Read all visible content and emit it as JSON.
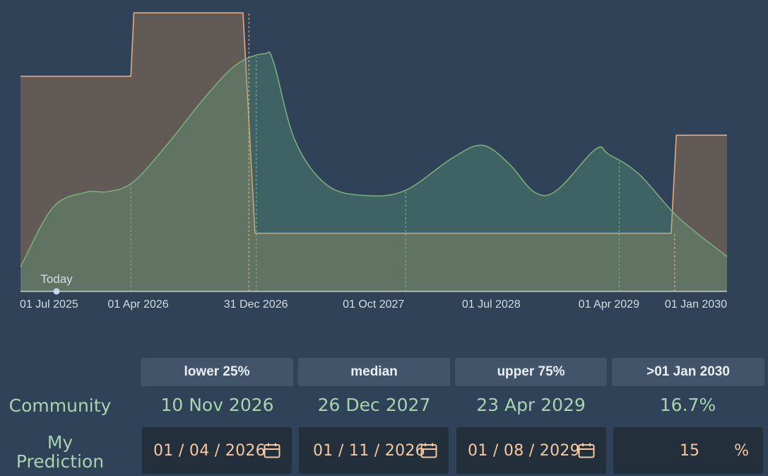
{
  "chart_data": {
    "type": "area",
    "xlim": [
      "2025-07-01",
      "2030-01-01"
    ],
    "x_ticks": [
      "01 Jul 2025",
      "01 Apr 2026",
      "31 Dec 2026",
      "01 Oct 2027",
      "01 Jul 2028",
      "01 Apr 2029",
      "01 Jan 2030"
    ],
    "today_label": "Today",
    "today_date": "2025-07-01",
    "grid": false,
    "series": [
      {
        "color": "#e8a877",
        "fill": "#615a57",
        "curve": "step",
        "points": [
          [
            "2025-07-01",
            0.77
          ],
          [
            "2026-03-15",
            0.77
          ],
          [
            "2026-03-22",
            0.997
          ],
          [
            "2026-12-01",
            0.997
          ],
          [
            "2026-12-29",
            0.208
          ],
          [
            "2029-08-24",
            0.208
          ],
          [
            "2029-09-05",
            0.559
          ],
          [
            "2030-01-01",
            0.559
          ]
        ]
      },
      {
        "color": "#78ad78",
        "fill": "rgba(100,172,126,0.32)",
        "curve": "smooth",
        "points": [
          [
            "2025-07-01",
            0.088
          ],
          [
            "2025-09-15",
            0.301
          ],
          [
            "2025-12-01",
            0.355
          ],
          [
            "2026-01-20",
            0.357
          ],
          [
            "2026-03-20",
            0.391
          ],
          [
            "2026-06-10",
            0.53
          ],
          [
            "2026-09-01",
            0.69
          ],
          [
            "2026-11-15",
            0.811
          ],
          [
            "2027-01-20",
            0.851
          ],
          [
            "2027-02-10",
            0.822
          ],
          [
            "2027-04-01",
            0.541
          ],
          [
            "2027-06-15",
            0.38
          ],
          [
            "2027-09-15",
            0.343
          ],
          [
            "2027-12-15",
            0.362
          ],
          [
            "2028-04-01",
            0.477
          ],
          [
            "2028-06-10",
            0.523
          ],
          [
            "2028-08-10",
            0.459
          ],
          [
            "2028-10-10",
            0.355
          ],
          [
            "2028-12-01",
            0.362
          ],
          [
            "2029-03-01",
            0.509
          ],
          [
            "2029-04-01",
            0.49
          ],
          [
            "2029-06-10",
            0.42
          ],
          [
            "2029-09-10",
            0.264
          ],
          [
            "2030-01-01",
            0.125
          ]
        ]
      }
    ],
    "markers": [
      {
        "date": "2026-03-15",
        "series": 1
      },
      {
        "date": "2026-12-15",
        "series": 0
      },
      {
        "date": "2027-01-01",
        "series": 1
      },
      {
        "date": "2027-12-15",
        "series": 1
      },
      {
        "date": "2029-04-25",
        "series": 1
      },
      {
        "date": "2029-09-01",
        "series": 0
      }
    ]
  },
  "table": {
    "headers": [
      "lower 25%",
      "median",
      "upper 75%",
      ">01 Jan 2030"
    ],
    "community_label": "Community",
    "community_values": [
      "10 Nov 2026",
      "26 Dec 2027",
      "23 Apr 2029",
      "16.7%"
    ],
    "prediction_label_line1": "My",
    "prediction_label_line2": "Prediction",
    "prediction_values": [
      "01 / 04 / 2026",
      "01 / 11 / 2026",
      "01 / 08 / 2029"
    ],
    "prediction_percent": "15",
    "percent_sign": "%"
  },
  "colors": {
    "background": "#2f4257",
    "accent_text": "#a7d3b0",
    "input_text": "#f6c8a0",
    "header_bg": "#42546a"
  },
  "icons": [
    "calendar-icon"
  ]
}
